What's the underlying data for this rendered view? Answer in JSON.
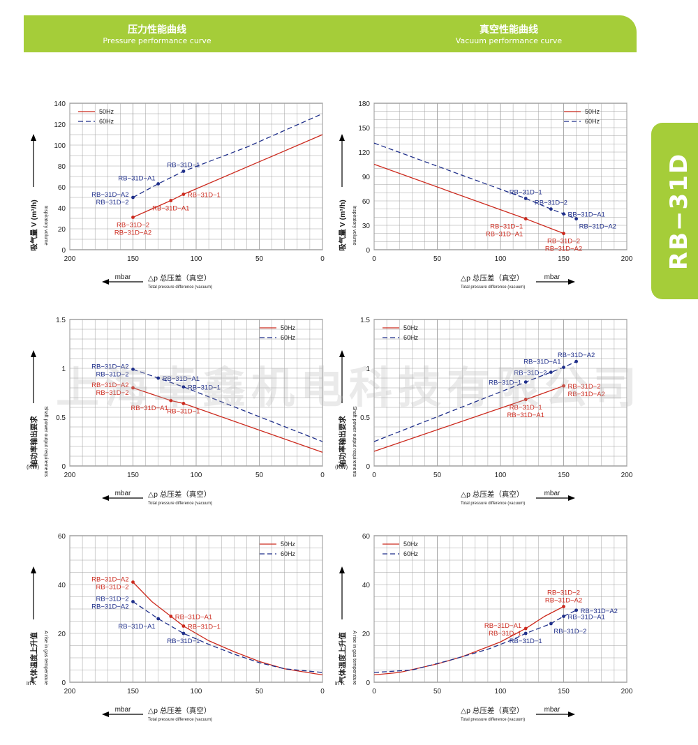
{
  "header": {
    "left_cn": "压力性能曲线",
    "left_en": "Pressure performance curve",
    "right_cn": "真空性能曲线",
    "right_en": "Vacuum performance curve"
  },
  "side_tab": "RB−31D",
  "watermark": "上海卓鑫机电科技有限公司",
  "colors": {
    "accent": "#a5cd39",
    "series_50hz": "#cc2a1e",
    "series_60hz": "#1f2f8a",
    "grid": "#9a9a9a"
  },
  "chart_data": [
    {
      "id": "pressure-flow",
      "type": "line",
      "side": "pressure",
      "x_reversed": true,
      "xlim": [
        200,
        0
      ],
      "ylim": [
        0,
        140
      ],
      "xticks": [
        200,
        150,
        100,
        50,
        0
      ],
      "yticks": [
        0,
        20,
        40,
        60,
        80,
        100,
        120,
        140
      ],
      "ylabel_cn": "吸气量 V (m³/h)",
      "ylabel_en": "Inspiratory volume",
      "xlabel_unit": "mbar",
      "xlabel_cn": "△p 总压差（真空）",
      "xlabel_en": "Total pressure difference (vacuum)",
      "legend": [
        "50Hz",
        "60Hz"
      ],
      "legend_pos": "top-left",
      "grid": true,
      "series": [
        {
          "name": "50Hz",
          "x": [
            150,
            120,
            110,
            0
          ],
          "y": [
            31,
            47,
            53,
            110
          ]
        },
        {
          "name": "60Hz",
          "x": [
            150,
            130,
            110,
            60,
            0
          ],
          "y": [
            50,
            63,
            75,
            98,
            130
          ]
        }
      ],
      "annotations": [
        {
          "series": "50Hz",
          "x": 150,
          "y": 31,
          "label": "RB−31D−2\nRB−31D−A2",
          "pos": "below"
        },
        {
          "series": "50Hz",
          "x": 120,
          "y": 47,
          "label": "RB−31D−A1",
          "pos": "below"
        },
        {
          "series": "50Hz",
          "x": 110,
          "y": 53,
          "label": "RB−31D−1",
          "pos": "right"
        },
        {
          "series": "60Hz",
          "x": 150,
          "y": 50,
          "label": "RB−31D−A2\nRB−31D−2",
          "pos": "left"
        },
        {
          "series": "60Hz",
          "x": 130,
          "y": 63,
          "label": "RB−31D−A1",
          "pos": "above-left"
        },
        {
          "series": "60Hz",
          "x": 110,
          "y": 75,
          "label": "RB−31D−1",
          "pos": "above"
        }
      ]
    },
    {
      "id": "vacuum-flow",
      "type": "line",
      "side": "vacuum",
      "x_reversed": false,
      "xlim": [
        0,
        200
      ],
      "ylim": [
        0,
        180
      ],
      "xticks": [
        0,
        50,
        100,
        150,
        200
      ],
      "yticks": [
        0,
        30,
        60,
        90,
        120,
        150,
        180
      ],
      "ylabel_cn": "吸气量 V (m³/h)",
      "ylabel_en": "Inspiratory volume",
      "xlabel_unit": "mbar",
      "xlabel_cn": "△p 总压差（真空）",
      "xlabel_en": "Total pressure difference (vacuum)",
      "legend": [
        "50Hz",
        "60Hz"
      ],
      "legend_pos": "top-right",
      "grid": true,
      "series": [
        {
          "name": "50Hz",
          "x": [
            0,
            120,
            150
          ],
          "y": [
            105,
            38,
            20
          ]
        },
        {
          "name": "60Hz",
          "x": [
            0,
            120,
            140,
            150,
            160
          ],
          "y": [
            131,
            63,
            50,
            44,
            38
          ]
        }
      ],
      "annotations": [
        {
          "series": "50Hz",
          "x": 120,
          "y": 38,
          "label": "RB−31D−1\nRB−31D−A1",
          "pos": "below-left"
        },
        {
          "series": "50Hz",
          "x": 150,
          "y": 20,
          "label": "RB−31D−2\nRB−31D−A2",
          "pos": "below"
        },
        {
          "series": "60Hz",
          "x": 120,
          "y": 63,
          "label": "RB−31D−1",
          "pos": "above"
        },
        {
          "series": "60Hz",
          "x": 140,
          "y": 50,
          "label": "RB−31D−2",
          "pos": "above"
        },
        {
          "series": "60Hz",
          "x": 150,
          "y": 44,
          "label": "RB−31D−A1",
          "pos": "right"
        },
        {
          "series": "60Hz",
          "x": 160,
          "y": 38,
          "label": "RB−31D−A2",
          "pos": "below-right"
        }
      ]
    },
    {
      "id": "pressure-power",
      "type": "line",
      "side": "pressure",
      "x_reversed": true,
      "xlim": [
        200,
        0
      ],
      "ylim": [
        0,
        1.5
      ],
      "xticks": [
        200,
        150,
        100,
        50,
        0
      ],
      "yticks": [
        0,
        0.5,
        1,
        1.5
      ],
      "ytick_labels": [
        "0",
        "0.5",
        "1",
        "1.5"
      ],
      "ylabel_cn": "轴功率输出要求",
      "ylabel_en": "Shaft power output requirements",
      "ylabel_unit": "(KW)",
      "xlabel_unit": "mbar",
      "xlabel_cn": "△p 总压差（真空）",
      "xlabel_en": "Total pressure difference (vacuum)",
      "legend": [
        "50Hz",
        "60Hz"
      ],
      "legend_pos": "top-right",
      "grid": true,
      "series": [
        {
          "name": "50Hz",
          "x": [
            150,
            120,
            110,
            0
          ],
          "y": [
            0.8,
            0.67,
            0.64,
            0.14
          ]
        },
        {
          "name": "60Hz",
          "x": [
            150,
            130,
            110,
            0
          ],
          "y": [
            0.99,
            0.9,
            0.81,
            0.25
          ]
        }
      ],
      "annotations": [
        {
          "series": "50Hz",
          "x": 150,
          "y": 0.8,
          "label": "RB−31D−A2\nRB−31D−2",
          "pos": "left"
        },
        {
          "series": "50Hz",
          "x": 120,
          "y": 0.67,
          "label": "RB−31D−A1",
          "pos": "below-left"
        },
        {
          "series": "50Hz",
          "x": 110,
          "y": 0.64,
          "label": "RB−31D−1",
          "pos": "below"
        },
        {
          "series": "60Hz",
          "x": 150,
          "y": 0.99,
          "label": "RB−31D−A2\nRB−31D−2",
          "pos": "left"
        },
        {
          "series": "60Hz",
          "x": 130,
          "y": 0.9,
          "label": "RB−31D−A1",
          "pos": "right"
        },
        {
          "series": "60Hz",
          "x": 110,
          "y": 0.81,
          "label": "RB−31D−1",
          "pos": "right"
        }
      ]
    },
    {
      "id": "vacuum-power",
      "type": "line",
      "side": "vacuum",
      "x_reversed": false,
      "xlim": [
        0,
        200
      ],
      "ylim": [
        0,
        1.5
      ],
      "xticks": [
        0,
        50,
        100,
        150,
        200
      ],
      "yticks": [
        0,
        0.5,
        1,
        1.5
      ],
      "ytick_labels": [
        "0",
        "0.5",
        "1",
        "1.5"
      ],
      "ylabel_cn": "轴功率输出要求",
      "ylabel_en": "Shaft power output requirements",
      "ylabel_unit": "(KW)",
      "xlabel_unit": "mbar",
      "xlabel_cn": "△p 总压差（真空）",
      "xlabel_en": "Total pressure difference (vacuum)",
      "legend": [
        "50Hz",
        "60Hz"
      ],
      "legend_pos": "top-left",
      "grid": true,
      "series": [
        {
          "name": "50Hz",
          "x": [
            0,
            120,
            150
          ],
          "y": [
            0.15,
            0.68,
            0.82
          ]
        },
        {
          "name": "60Hz",
          "x": [
            0,
            120,
            140,
            150,
            160
          ],
          "y": [
            0.25,
            0.86,
            0.96,
            1.01,
            1.07
          ]
        }
      ],
      "annotations": [
        {
          "series": "50Hz",
          "x": 120,
          "y": 0.68,
          "label": "RB−31D−1\nRB−31D−A1",
          "pos": "below"
        },
        {
          "series": "50Hz",
          "x": 150,
          "y": 0.82,
          "label": "RB−31D−2\nRB−31D−A2",
          "pos": "right"
        },
        {
          "series": "60Hz",
          "x": 120,
          "y": 0.86,
          "label": "RB−31D−1",
          "pos": "left"
        },
        {
          "series": "60Hz",
          "x": 140,
          "y": 0.96,
          "label": "RB−31D−2",
          "pos": "left"
        },
        {
          "series": "60Hz",
          "x": 150,
          "y": 1.01,
          "label": "RB−31D−A1",
          "pos": "above-left"
        },
        {
          "series": "60Hz",
          "x": 160,
          "y": 1.07,
          "label": "RB−31D−A2",
          "pos": "above"
        }
      ]
    },
    {
      "id": "pressure-temp",
      "type": "line",
      "side": "pressure",
      "x_reversed": true,
      "xlim": [
        200,
        0
      ],
      "ylim": [
        0,
        60
      ],
      "xticks": [
        200,
        150,
        100,
        50,
        0
      ],
      "yticks": [
        0,
        20,
        40,
        60
      ],
      "ylabel_cn": "气体温度上升值",
      "ylabel_en": "A rise in gas temperature",
      "ylabel_unit": "in K",
      "xlabel_unit": "mbar",
      "xlabel_cn": "△p 总压差（真空）",
      "xlabel_en": "Total pressure difference (vacuum)",
      "legend": [
        "50Hz",
        "60Hz"
      ],
      "legend_pos": "top-right",
      "grid": true,
      "series": [
        {
          "name": "50Hz",
          "x": [
            150,
            135,
            120,
            110,
            90,
            70,
            50,
            30,
            0
          ],
          "y": [
            41,
            33,
            27,
            23,
            17,
            12.5,
            8.5,
            5.5,
            3
          ]
        },
        {
          "name": "60Hz",
          "x": [
            150,
            130,
            110,
            90,
            70,
            50,
            30,
            0
          ],
          "y": [
            33,
            26,
            20,
            15.5,
            11.5,
            8,
            5.5,
            4
          ]
        }
      ],
      "annotations": [
        {
          "series": "50Hz",
          "x": 150,
          "y": 41,
          "label": "RB−31D−A2\nRB−31D−2",
          "pos": "left"
        },
        {
          "series": "50Hz",
          "x": 120,
          "y": 27,
          "label": "RB−31D−A1",
          "pos": "right"
        },
        {
          "series": "50Hz",
          "x": 110,
          "y": 23,
          "label": "RB−31D−1",
          "pos": "right"
        },
        {
          "series": "60Hz",
          "x": 150,
          "y": 33,
          "label": "RB−31D−2\nRB−31D−A2",
          "pos": "left"
        },
        {
          "series": "60Hz",
          "x": 130,
          "y": 26,
          "label": "RB−31D−A1",
          "pos": "below-left"
        },
        {
          "series": "60Hz",
          "x": 110,
          "y": 20,
          "label": "RB−31D−1",
          "pos": "below"
        }
      ]
    },
    {
      "id": "vacuum-temp",
      "type": "line",
      "side": "vacuum",
      "x_reversed": false,
      "xlim": [
        0,
        200
      ],
      "ylim": [
        0,
        60
      ],
      "xticks": [
        0,
        50,
        100,
        150,
        200
      ],
      "yticks": [
        0,
        20,
        40,
        60
      ],
      "ylabel_cn": "气体温度上升值",
      "ylabel_en": "A rise in gas temperature",
      "ylabel_unit": "in K",
      "xlabel_unit": "mbar",
      "xlabel_cn": "△p 总压差（真空）",
      "xlabel_en": "Total pressure difference (vacuum)",
      "legend": [
        "50Hz",
        "60Hz"
      ],
      "legend_pos": "top-left",
      "grid": true,
      "series": [
        {
          "name": "50Hz",
          "x": [
            0,
            20,
            50,
            70,
            100,
            120,
            135,
            150
          ],
          "y": [
            3,
            4,
            7.5,
            10.5,
            16.5,
            22,
            27,
            31
          ]
        },
        {
          "name": "60Hz",
          "x": [
            0,
            30,
            60,
            90,
            110,
            120,
            140,
            150,
            160
          ],
          "y": [
            4,
            5,
            9,
            13.5,
            17.5,
            20,
            24,
            27,
            29.5
          ]
        }
      ],
      "annotations": [
        {
          "series": "50Hz",
          "x": 120,
          "y": 22,
          "label": "RB−31D−A1\nRB−31D−1",
          "pos": "left"
        },
        {
          "series": "50Hz",
          "x": 150,
          "y": 31,
          "label": "RB−31D−2\nRB−31D−A2",
          "pos": "above"
        },
        {
          "series": "60Hz",
          "x": 120,
          "y": 20,
          "label": "RB−31D−1",
          "pos": "below"
        },
        {
          "series": "60Hz",
          "x": 140,
          "y": 24,
          "label": "RB−31D−2",
          "pos": "below-right"
        },
        {
          "series": "60Hz",
          "x": 150,
          "y": 27,
          "label": "RB−31D−A1",
          "pos": "right"
        },
        {
          "series": "60Hz",
          "x": 160,
          "y": 29.5,
          "label": "RB−31D−A2",
          "pos": "right"
        }
      ]
    }
  ]
}
